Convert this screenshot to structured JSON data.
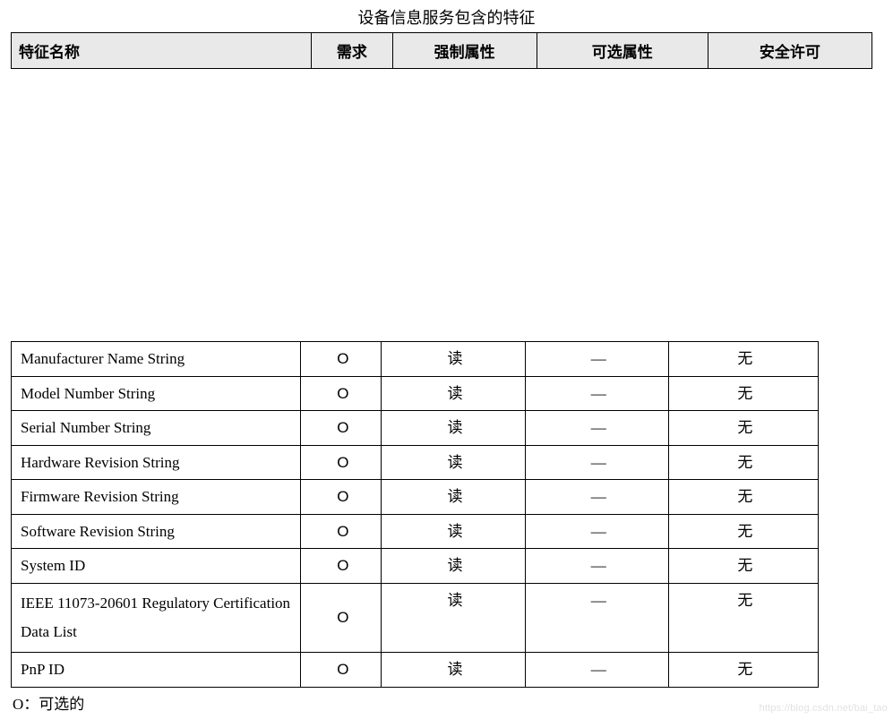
{
  "title": "设备信息服务包含的特征",
  "table": {
    "type": "table",
    "header_bg": "#e9e9e9",
    "border_color": "#000000",
    "columns": [
      {
        "key": "name",
        "label": "特征名称",
        "align": "left"
      },
      {
        "key": "req",
        "label": "需求",
        "align": "center"
      },
      {
        "key": "mand",
        "label": "强制属性",
        "align": "center"
      },
      {
        "key": "opt",
        "label": "可选属性",
        "align": "center"
      },
      {
        "key": "sec",
        "label": "安全许可",
        "align": "center"
      }
    ],
    "rows": [
      {
        "name": "Manufacturer Name String",
        "req": "O",
        "mand": "读",
        "opt": "—",
        "sec": "无"
      },
      {
        "name": "Model Number String",
        "req": "O",
        "mand": "读",
        "opt": "—",
        "sec": "无"
      },
      {
        "name": "Serial Number String",
        "req": "O",
        "mand": "读",
        "opt": "—",
        "sec": "无"
      },
      {
        "name": "Hardware Revision String",
        "req": "O",
        "mand": "读",
        "opt": "—",
        "sec": "无"
      },
      {
        "name": "Firmware Revision String",
        "req": "O",
        "mand": "读",
        "opt": "—",
        "sec": "无"
      },
      {
        "name": "Software Revision String",
        "req": "O",
        "mand": "读",
        "opt": "—",
        "sec": "无"
      },
      {
        "name": "System ID",
        "req": "O",
        "mand": "读",
        "opt": "—",
        "sec": "无"
      },
      {
        "name": "IEEE 11073-20601 Regulatory Certification Data List",
        "req": "O",
        "mand": "读",
        "opt": "—",
        "sec": "无",
        "tall": true
      },
      {
        "name": "PnP ID",
        "req": "O",
        "mand": "读",
        "opt": "—",
        "sec": "无"
      }
    ]
  },
  "footnote": "O：可选的",
  "watermark": "https://blog.csdn.net/bai_tao"
}
